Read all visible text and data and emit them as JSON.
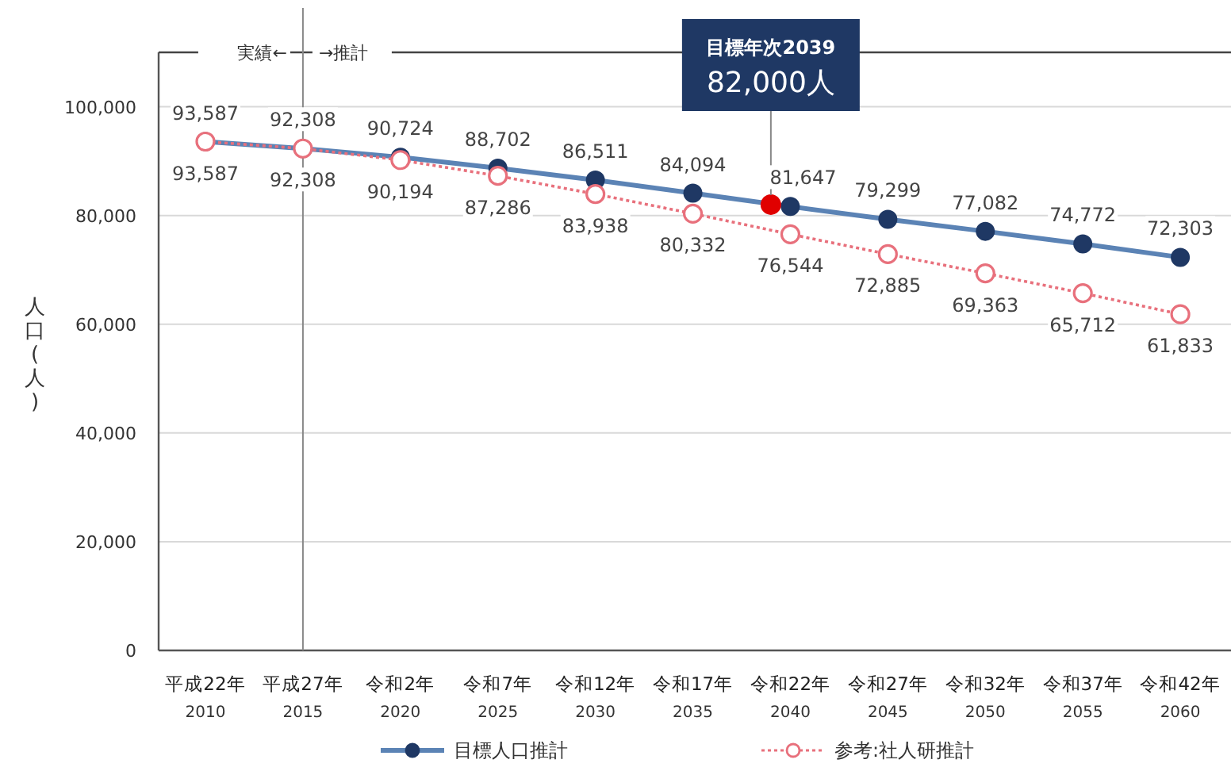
{
  "chart_data": {
    "type": "line",
    "ylabel": "人口(人)",
    "x": [
      2010,
      2015,
      2020,
      2025,
      2030,
      2035,
      2040,
      2045,
      2050,
      2055,
      2060
    ],
    "xlim": [
      2007.6,
      2062.6
    ],
    "xticks": [
      2010,
      2015,
      2020,
      2025,
      2030,
      2035,
      2040,
      2045,
      2050,
      2055,
      2060
    ],
    "ylim": [
      0,
      110000
    ],
    "yticks": [
      {
        "value": 0,
        "label": "0"
      },
      {
        "value": 20000,
        "label": "20,000"
      },
      {
        "value": 40000,
        "label": "40,000"
      },
      {
        "value": 60000,
        "label": "60,000"
      },
      {
        "value": 80000,
        "label": "80,000"
      },
      {
        "value": 100000,
        "label": "100,000"
      }
    ],
    "grid": "y",
    "legend": "bottom",
    "marker": "circle",
    "series": [
      {
        "name": "目標人口推計",
        "color": "#1f3864",
        "line_style": "solid",
        "values": [
          93587,
          92308,
          90724,
          88702,
          86511,
          84094,
          81647,
          79299,
          77082,
          74772,
          72303
        ],
        "value_labels": [
          "93,587",
          "92,308",
          "90,724",
          "88,702",
          "86,511",
          "84,094",
          "81,647",
          "79,299",
          "77,082",
          "74,772",
          "72,303"
        ]
      },
      {
        "name": "参考:社人研推計",
        "color": "#e8707c",
        "line_style": "dotted",
        "values": [
          93587,
          92308,
          90194,
          87286,
          83938,
          80332,
          76544,
          72885,
          69363,
          65712,
          61833
        ],
        "value_labels": [
          "93,587",
          "92,308",
          "90,194",
          "87,286",
          "83,938",
          "80,332",
          "76,544",
          "72,885",
          "69,363",
          "65,712",
          "61,833"
        ]
      },
      {
        "type": "scatter",
        "color": "#e00000",
        "x": [
          2039
        ],
        "values": [
          82000
        ]
      }
    ],
    "ref_lines": [
      {
        "axis": "x",
        "value": 2015
      }
    ],
    "annotations": [
      "実績←",
      "→推計",
      {
        "text": "目標年次2039\n82,000人",
        "x": 2039,
        "y": 82000
      },
      "平成22年",
      "平成27年",
      "令和2年",
      "令和7年",
      "令和12年",
      "令和17年",
      "令和22年",
      "令和27年",
      "令和32年",
      "令和37年",
      "令和42年"
    ]
  }
}
